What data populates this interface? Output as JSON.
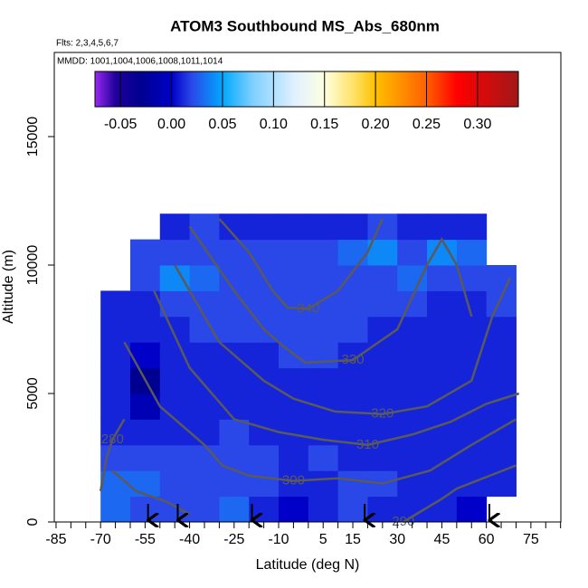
{
  "chart_data": {
    "type": "curtain",
    "title": "ATOM3 Southbound MS_Abs_680nm",
    "subtitle": "Flts: 2,3,4,5,6,7",
    "note": "MMDD: 1001,1004,1006,1008,1011,1014",
    "x_label": "Latitude (deg N)",
    "y_label": "Altitude (m)",
    "xlim": [
      -85.6,
      85.1
    ],
    "ylim": [
      0,
      18275
    ],
    "xticks": [
      -85,
      -70,
      -55,
      -40,
      -25,
      -10,
      5,
      15,
      30,
      45,
      60,
      75
    ],
    "xminorticks": [
      -80,
      -75,
      -65,
      -60,
      -50,
      -45,
      -35,
      -30,
      -20,
      -15,
      -5,
      0,
      10,
      20,
      25,
      35,
      40,
      50,
      55,
      65,
      70,
      80,
      85
    ],
    "yticks": [
      0,
      5000,
      10000,
      15000
    ],
    "colorbar": {
      "lim": [
        -0.075,
        0.34
      ],
      "ticks": [
        {
          "value": -0.05,
          "label": "-0.05"
        },
        {
          "value": 0,
          "label": "0.00"
        },
        {
          "value": 0.05,
          "label": "0.05"
        },
        {
          "value": 0.1,
          "label": "0.10"
        },
        {
          "value": 0.15,
          "label": "0.15"
        },
        {
          "value": 0.2,
          "label": "0.20"
        },
        {
          "value": 0.25,
          "label": "0.25"
        },
        {
          "value": 0.3,
          "label": "0.30"
        }
      ],
      "stops": [
        [
          -0.075,
          "#9a28f0"
        ],
        [
          -0.055,
          "#20009a"
        ],
        [
          -0.03,
          "#000090"
        ],
        [
          0,
          "#0000c8"
        ],
        [
          0.02,
          "#2a48e8"
        ],
        [
          0.05,
          "#00a8ff"
        ],
        [
          0.08,
          "#80d0ff"
        ],
        [
          0.12,
          "#e0f0ff"
        ],
        [
          0.15,
          "#ffffe0"
        ],
        [
          0.18,
          "#ffe060"
        ],
        [
          0.2,
          "#ffc000"
        ],
        [
          0.25,
          "#ff6000"
        ],
        [
          0.28,
          "#ff0000"
        ],
        [
          0.34,
          "#a01818"
        ]
      ]
    },
    "heatmap": {
      "lat_edges": [
        -70,
        -60,
        -50,
        -40,
        -30,
        -20,
        -10,
        0,
        10,
        20,
        30,
        40,
        50,
        60,
        70
      ],
      "alt_edges": [
        0,
        1000,
        2000,
        3000,
        4000,
        5000,
        6000,
        7000,
        8000,
        9000,
        10000,
        11000,
        12000
      ],
      "values": [
        [
          0.03,
          0.02,
          0.02,
          0.02,
          0.03,
          0.01,
          0.0,
          0.01,
          0.02,
          0.01,
          0.01,
          0.01,
          0.0,
          null
        ],
        [
          0.03,
          0.03,
          0.02,
          0.02,
          0.02,
          0.02,
          0.01,
          0.01,
          0.02,
          0.02,
          0.01,
          0.01,
          0.01,
          0.01
        ],
        [
          0.02,
          0.02,
          0.02,
          0.02,
          0.02,
          0.02,
          0.01,
          0.02,
          0.01,
          0.01,
          0.01,
          0.01,
          0.01,
          0.01
        ],
        [
          0.01,
          0.01,
          0.01,
          0.01,
          0.02,
          0.01,
          0.01,
          0.01,
          0.01,
          0.01,
          0.01,
          0.01,
          0.01,
          0.01
        ],
        [
          0.01,
          -0.01,
          0.01,
          0.01,
          0.01,
          0.01,
          0.01,
          0.01,
          0.01,
          0.01,
          0.01,
          0.01,
          0.01,
          0.01
        ],
        [
          0.01,
          -0.03,
          0.01,
          0.01,
          0.01,
          0.01,
          0.01,
          0.01,
          0.01,
          0.01,
          0.01,
          0.01,
          0.01,
          0.01
        ],
        [
          0.01,
          0.0,
          0.01,
          0.01,
          0.01,
          0.01,
          0.02,
          0.02,
          0.01,
          0.01,
          0.01,
          0.01,
          0.01,
          0.01
        ],
        [
          0.01,
          0.01,
          0.01,
          0.02,
          0.02,
          0.02,
          0.02,
          0.02,
          0.02,
          0.01,
          0.01,
          0.01,
          0.01,
          0.01
        ],
        [
          0.01,
          0.01,
          0.02,
          0.02,
          0.02,
          0.02,
          0.02,
          0.02,
          0.02,
          0.02,
          0.02,
          0.01,
          0.01,
          0.02
        ],
        [
          null,
          0.02,
          0.04,
          0.03,
          0.02,
          0.02,
          0.02,
          0.02,
          0.02,
          0.02,
          0.03,
          0.02,
          0.02,
          0.02
        ],
        [
          null,
          0.02,
          0.02,
          0.02,
          0.02,
          0.02,
          0.02,
          0.02,
          0.03,
          0.04,
          0.02,
          0.04,
          0.03,
          null
        ],
        [
          null,
          null,
          0.01,
          0.02,
          0.01,
          0.01,
          0.01,
          0.01,
          0.01,
          0.02,
          0.01,
          0.01,
          0.01,
          null
        ]
      ]
    },
    "contour_color": "#5a5a5a",
    "contours": [
      {
        "level": 280,
        "x": [
          -70,
          -68,
          -66,
          -62
        ],
        "y": [
          1200,
          2500,
          3200,
          4000
        ]
      },
      {
        "level": 290,
        "x": [
          -66,
          -58,
          -48,
          -40,
          null,
          32,
          45,
          50,
          70
        ],
        "y": [
          2000,
          1200,
          800,
          300,
          null,
          0,
          900,
          1300,
          2200
        ]
      },
      {
        "level": 300,
        "x": [
          -62,
          -50,
          -35,
          -29,
          -20,
          -5,
          10,
          25,
          41,
          55,
          70
        ],
        "y": [
          7000,
          4500,
          3000,
          2200,
          1800,
          1600,
          1700,
          1500,
          2000,
          3000,
          4000
        ]
      },
      {
        "level": 310,
        "x": [
          -52,
          -40,
          -25,
          -10,
          5,
          20,
          35,
          48,
          60,
          71
        ],
        "y": [
          9000,
          6000,
          4000,
          3500,
          3200,
          3000,
          3400,
          3900,
          4600,
          5000
        ]
      },
      {
        "level": 320,
        "x": [
          -45,
          -30,
          -15,
          -5,
          9,
          25,
          40,
          55,
          62,
          68
        ],
        "y": [
          10000,
          7000,
          5500,
          4800,
          4300,
          4200,
          4500,
          5500,
          8000,
          9500
        ]
      },
      {
        "level": 330,
        "x": [
          -40,
          -25,
          -15,
          -8,
          -1,
          15,
          30,
          40,
          45,
          50,
          55
        ],
        "y": [
          11500,
          9000,
          7500,
          6800,
          6200,
          6300,
          7500,
          10000,
          11000,
          10000,
          8000
        ]
      },
      {
        "level": 340,
        "x": [
          -30,
          -20,
          -12,
          -7,
          0,
          10,
          20,
          25
        ],
        "y": [
          11800,
          10500,
          9000,
          8340,
          8300,
          9000,
          10500,
          11800
        ]
      }
    ],
    "arrow_color": "#000000",
    "arrows": [
      -54,
      -44,
      -19,
      19,
      61
    ]
  }
}
